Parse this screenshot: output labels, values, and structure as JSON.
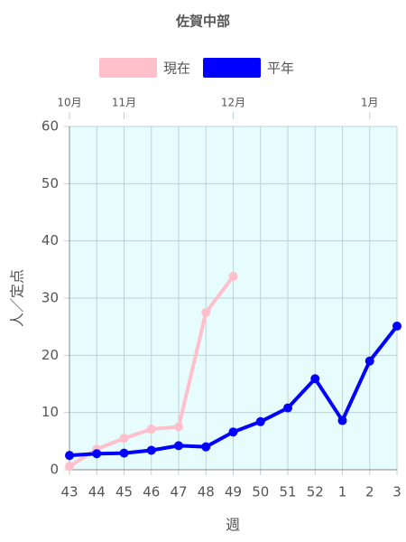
{
  "chart_data": {
    "type": "line",
    "title": "佐賀中部",
    "categories": [
      "43",
      "44",
      "45",
      "46",
      "47",
      "48",
      "49",
      "50",
      "51",
      "52",
      "1",
      "2",
      "3"
    ],
    "months": [
      "10月",
      null,
      "11月",
      null,
      null,
      null,
      "12月",
      null,
      null,
      null,
      null,
      "1月",
      null
    ],
    "series": [
      {
        "name": "現在",
        "color": "#ffc0cb",
        "values": [
          0.6,
          3.6,
          5.5,
          7.1,
          7.5,
          27.5,
          33.8,
          null,
          null,
          null,
          null,
          null,
          null
        ]
      },
      {
        "name": "平年",
        "color": "#0000ff",
        "values": [
          2.5,
          2.8,
          2.9,
          3.4,
          4.2,
          4.0,
          6.6,
          8.4,
          10.8,
          15.9,
          8.6,
          19.0,
          25.1
        ]
      }
    ],
    "ylabel": "人／定点",
    "xlabel": "週",
    "ylim": [
      0,
      60
    ],
    "yticks": [
      0,
      10,
      20,
      30,
      40,
      50,
      60
    ],
    "grid": true,
    "legend": "top",
    "background": "#e6fcfd"
  }
}
